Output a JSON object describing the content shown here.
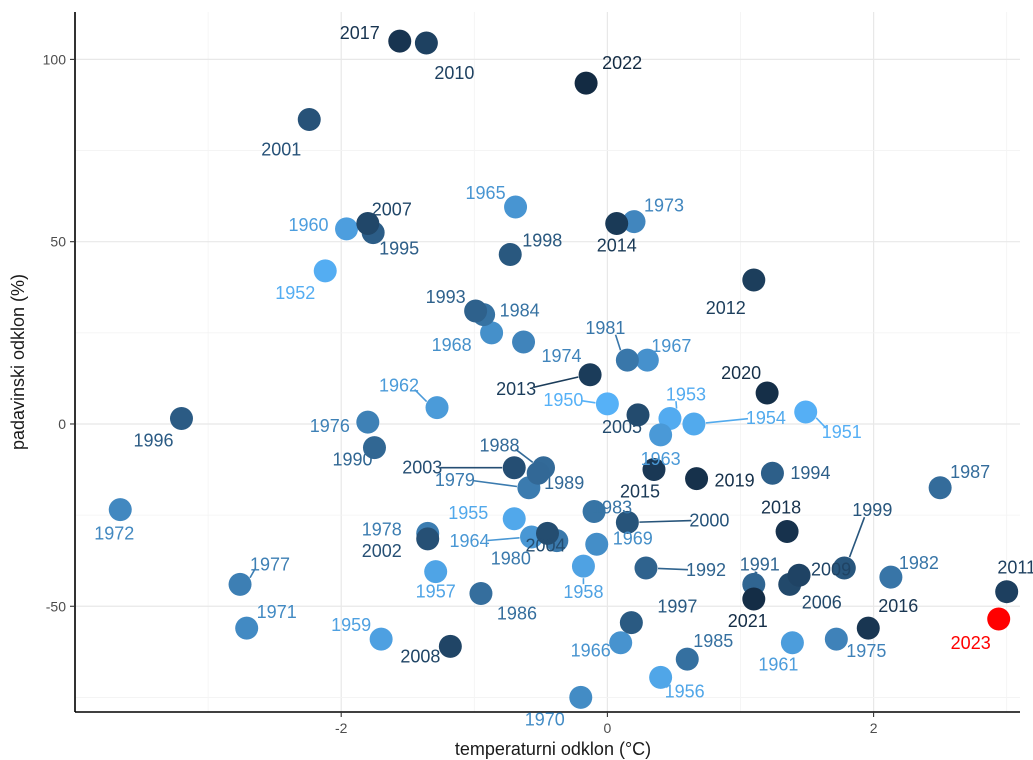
{
  "chart_data": {
    "type": "scatter",
    "xlabel": "temperaturni odklon (°C)",
    "ylabel": "padavinski odklon (%)",
    "xlim": [
      -4.0,
      3.1
    ],
    "ylim": [
      -79,
      113
    ],
    "x_ticks": [
      -2,
      0,
      2
    ],
    "y_ticks": [
      -50,
      0,
      50,
      100
    ],
    "x_tick_labels": [
      "-2",
      "0",
      "2"
    ],
    "y_tick_labels": [
      "-50",
      "0",
      "50",
      "100"
    ],
    "grid": true,
    "legend": "none",
    "color_scale": {
      "low": "#132b43",
      "high": "#56b1f7",
      "highlight": "#ff0000"
    },
    "points": [
      {
        "year": "1950",
        "x": 0.0,
        "y": 5.5
      },
      {
        "year": "1951",
        "x": 1.49,
        "y": 3.3
      },
      {
        "year": "1952",
        "x": -2.12,
        "y": 42.0
      },
      {
        "year": "1953",
        "x": 0.47,
        "y": 1.5
      },
      {
        "year": "1954",
        "x": 0.65,
        "y": 0.0
      },
      {
        "year": "1955",
        "x": -0.7,
        "y": -26.0
      },
      {
        "year": "1956",
        "x": 0.4,
        "y": -69.5
      },
      {
        "year": "1957",
        "x": -1.29,
        "y": -40.5
      },
      {
        "year": "1958",
        "x": -0.18,
        "y": -39.0
      },
      {
        "year": "1959",
        "x": -1.7,
        "y": -59.0
      },
      {
        "year": "1960",
        "x": -1.96,
        "y": 53.5
      },
      {
        "year": "1961",
        "x": 1.39,
        "y": -60.0
      },
      {
        "year": "1962",
        "x": -1.28,
        "y": 4.5
      },
      {
        "year": "1963",
        "x": 0.4,
        "y": -3.0
      },
      {
        "year": "1964",
        "x": -0.57,
        "y": -31.0
      },
      {
        "year": "1965",
        "x": -0.69,
        "y": 59.5
      },
      {
        "year": "1966",
        "x": 0.1,
        "y": -60.0
      },
      {
        "year": "1967",
        "x": 0.3,
        "y": 17.5
      },
      {
        "year": "1968",
        "x": -0.87,
        "y": 25.0
      },
      {
        "year": "1969",
        "x": -0.08,
        "y": -33.0
      },
      {
        "year": "1970",
        "x": -0.2,
        "y": -75.0
      },
      {
        "year": "1971",
        "x": -2.71,
        "y": -56.0
      },
      {
        "year": "1972",
        "x": -3.66,
        "y": -23.5
      },
      {
        "year": "1973",
        "x": 0.2,
        "y": 55.5
      },
      {
        "year": "1974",
        "x": -0.63,
        "y": 22.5
      },
      {
        "year": "1975",
        "x": 1.72,
        "y": -59.0
      },
      {
        "year": "1976",
        "x": -1.8,
        "y": 0.5
      },
      {
        "year": "1977",
        "x": -2.76,
        "y": -44.0
      },
      {
        "year": "1978",
        "x": -1.35,
        "y": -30.0
      },
      {
        "year": "1979",
        "x": -0.59,
        "y": -17.5
      },
      {
        "year": "1980",
        "x": -0.38,
        "y": -32.0
      },
      {
        "year": "1981",
        "x": 0.15,
        "y": 17.5
      },
      {
        "year": "1982",
        "x": 2.13,
        "y": -42.0
      },
      {
        "year": "1983",
        "x": -0.1,
        "y": -24.0
      },
      {
        "year": "1984",
        "x": -0.93,
        "y": 30.0
      },
      {
        "year": "1985",
        "x": 0.6,
        "y": -64.5
      },
      {
        "year": "1986",
        "x": -0.95,
        "y": -46.5
      },
      {
        "year": "1987",
        "x": 2.5,
        "y": -17.5
      },
      {
        "year": "1988",
        "x": -0.48,
        "y": -12.0
      },
      {
        "year": "1989",
        "x": -0.52,
        "y": -13.5
      },
      {
        "year": "1990",
        "x": -1.75,
        "y": -6.5
      },
      {
        "year": "1991",
        "x": 1.1,
        "y": -44.0
      },
      {
        "year": "1992",
        "x": 0.29,
        "y": -39.5
      },
      {
        "year": "1993",
        "x": -0.99,
        "y": 31.0
      },
      {
        "year": "1994",
        "x": 1.24,
        "y": -13.5
      },
      {
        "year": "1995",
        "x": -1.76,
        "y": 52.5
      },
      {
        "year": "1996",
        "x": -3.2,
        "y": 1.5
      },
      {
        "year": "1997",
        "x": 0.18,
        "y": -54.5
      },
      {
        "year": "1998",
        "x": -0.73,
        "y": 46.5
      },
      {
        "year": "1999",
        "x": 1.78,
        "y": -39.5
      },
      {
        "year": "2000",
        "x": 0.15,
        "y": -27.0
      },
      {
        "year": "2001",
        "x": -2.24,
        "y": 83.5
      },
      {
        "year": "2002",
        "x": -1.35,
        "y": -31.5
      },
      {
        "year": "2003",
        "x": -0.7,
        "y": -12.0
      },
      {
        "year": "2004",
        "x": -0.45,
        "y": -30.0
      },
      {
        "year": "2005",
        "x": 0.23,
        "y": 2.5
      },
      {
        "year": "2006",
        "x": 1.37,
        "y": -44.0
      },
      {
        "year": "2007",
        "x": -1.8,
        "y": 55.0
      },
      {
        "year": "2008",
        "x": -1.18,
        "y": -61.0
      },
      {
        "year": "2009",
        "x": 1.44,
        "y": -41.5
      },
      {
        "year": "2010",
        "x": -1.36,
        "y": 104.5
      },
      {
        "year": "2011",
        "x": 3.0,
        "y": -46.0
      },
      {
        "year": "2012",
        "x": 1.1,
        "y": 39.5
      },
      {
        "year": "2013",
        "x": -0.13,
        "y": 13.5
      },
      {
        "year": "2014",
        "x": 0.07,
        "y": 55.0
      },
      {
        "year": "2015",
        "x": 0.35,
        "y": -12.5
      },
      {
        "year": "2016",
        "x": 1.96,
        "y": -56.0
      },
      {
        "year": "2017",
        "x": -1.56,
        "y": 105.0
      },
      {
        "year": "2018",
        "x": 1.35,
        "y": -29.5
      },
      {
        "year": "2019",
        "x": 0.67,
        "y": -15.0
      },
      {
        "year": "2020",
        "x": 1.2,
        "y": 8.5
      },
      {
        "year": "2021",
        "x": 1.1,
        "y": -48.0
      },
      {
        "year": "2022",
        "x": -0.16,
        "y": 93.5
      },
      {
        "year": "2023",
        "x": 2.94,
        "y": -53.5
      }
    ]
  }
}
